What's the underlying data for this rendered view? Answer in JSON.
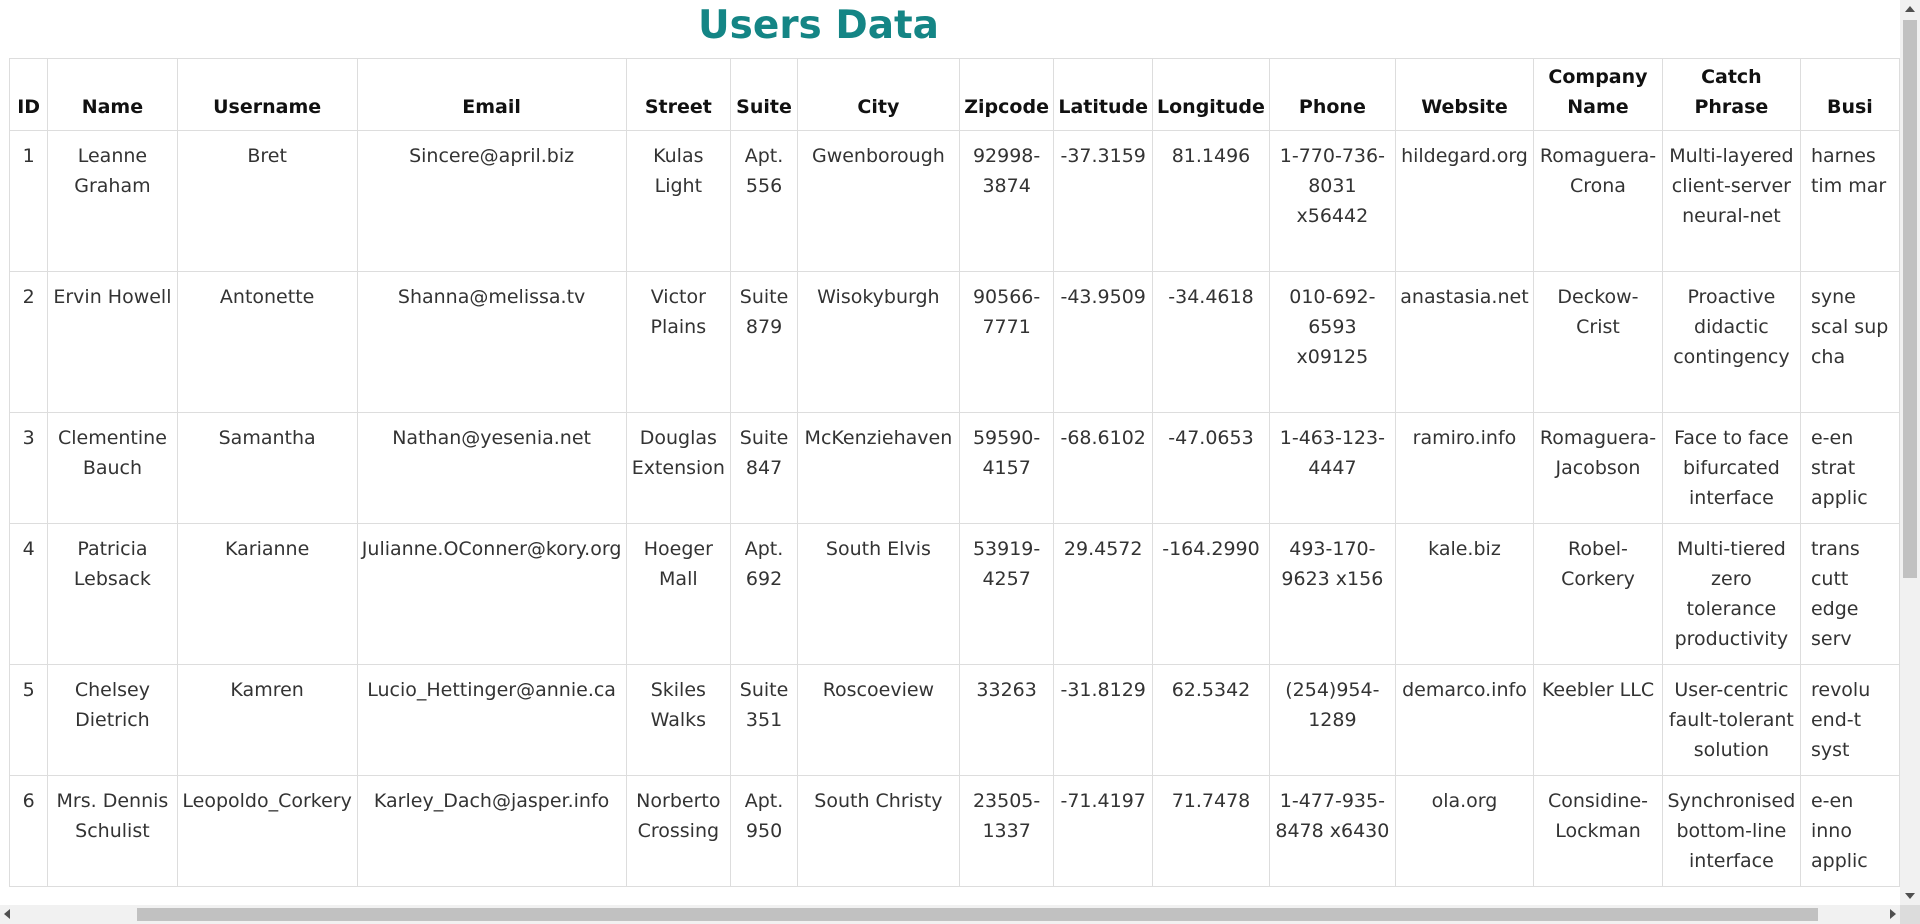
{
  "page": {
    "title": "Users Data"
  },
  "table": {
    "columns": [
      "ID",
      "Name",
      "Username",
      "Email",
      "Street",
      "Suite",
      "City",
      "Zipcode",
      "Latitude",
      "Longitude",
      "Phone",
      "Website",
      "Company Name",
      "Catch Phrase",
      "Business"
    ],
    "header_visible": [
      "ID",
      "Name",
      "Username",
      "Email",
      "Street",
      "Suite",
      "City",
      "Zipcode",
      "Latitude",
      "Longitude",
      "Phone",
      "Website",
      "Company Name",
      "Catch Phrase",
      "Busi"
    ],
    "rows": [
      [
        "1",
        "Leanne Graham",
        "Bret",
        "Sincere@april.biz",
        "Kulas Light",
        "Apt. 556",
        "Gwenborough",
        "92998-3874",
        "-37.3159",
        "81.1496",
        "1-770-736-8031 x56442",
        "hildegard.org",
        "Romaguera-Crona",
        "Multi-layered client-server neural-net",
        "harnes tim mar"
      ],
      [
        "2",
        "Ervin Howell",
        "Antonette",
        "Shanna@melissa.tv",
        "Victor Plains",
        "Suite 879",
        "Wisokyburgh",
        "90566-7771",
        "-43.9509",
        "-34.4618",
        "010-692-6593 x09125",
        "anastasia.net",
        "Deckow-Crist",
        "Proactive didactic contingency",
        "syne scal sup cha"
      ],
      [
        "3",
        "Clementine Bauch",
        "Samantha",
        "Nathan@yesenia.net",
        "Douglas Extension",
        "Suite 847",
        "McKenziehaven",
        "59590-4157",
        "-68.6102",
        "-47.0653",
        "1-463-123-4447",
        "ramiro.info",
        "Romaguera-Jacobson",
        "Face to face bifurcated interface",
        "e-en strat applic"
      ],
      [
        "4",
        "Patricia Lebsack",
        "Karianne",
        "Julianne.OConner@kory.org",
        "Hoeger Mall",
        "Apt. 692",
        "South Elvis",
        "53919-4257",
        "29.4572",
        "-164.2990",
        "493-170-9623 x156",
        "kale.biz",
        "Robel-Corkery",
        "Multi-tiered zero tolerance productivity",
        "trans cutt edge serv"
      ],
      [
        "5",
        "Chelsey Dietrich",
        "Kamren",
        "Lucio_Hettinger@annie.ca",
        "Skiles Walks",
        "Suite 351",
        "Roscoeview",
        "33263",
        "-31.8129",
        "62.5342",
        "(254)954-1289",
        "demarco.info",
        "Keebler LLC",
        "User-centric fault-tolerant solution",
        "revolu end-t syst"
      ],
      [
        "6",
        "Mrs. Dennis Schulist",
        "Leopoldo_Corkery",
        "Karley_Dach@jasper.info",
        "Norberto Crossing",
        "Apt. 950",
        "South Christy",
        "23505-1337",
        "-71.4197",
        "71.7478",
        "1-477-935-8478 x6430",
        "ola.org",
        "Considine-Lockman",
        "Synchronised bottom-line interface",
        "e-en inno applic"
      ]
    ]
  }
}
